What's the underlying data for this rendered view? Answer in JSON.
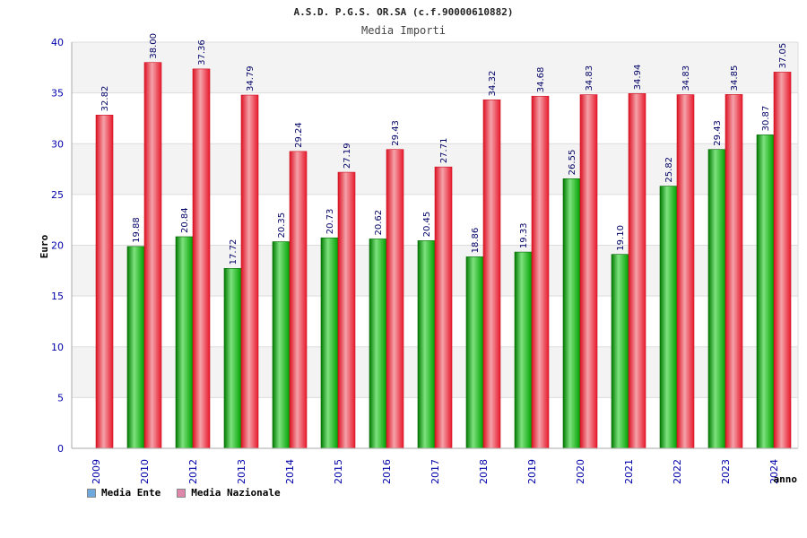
{
  "chart_data": {
    "type": "bar",
    "title": "A.S.D. P.G.S. OR.SA (c.f.90000610882)",
    "subtitle": "Media Importi",
    "xlabel": "anno",
    "ylabel": "Euro",
    "ylim": [
      0,
      40
    ],
    "yticks": [
      0,
      5,
      10,
      15,
      20,
      25,
      30,
      35,
      40
    ],
    "grid": true,
    "legend_position": "bottom-left",
    "categories": [
      "2009",
      "2010",
      "2012",
      "2013",
      "2014",
      "2015",
      "2016",
      "2017",
      "2018",
      "2019",
      "2020",
      "2021",
      "2022",
      "2023",
      "2024"
    ],
    "series": [
      {
        "name": "Media Ente",
        "color": "#00aa00",
        "legend_color": "#6fa8dc",
        "values": [
          null,
          19.88,
          20.84,
          17.72,
          20.35,
          20.73,
          20.62,
          20.45,
          18.86,
          19.33,
          26.55,
          19.1,
          25.82,
          29.43,
          30.87
        ],
        "labels": [
          "",
          "19.88",
          "20.84",
          "17.72",
          "20.35",
          "20.73",
          "20.62",
          "20.45",
          "18.86",
          "19.33",
          "26.55",
          "19.10",
          "25.82",
          "29.43",
          "30.87"
        ]
      },
      {
        "name": "Media Nazionale",
        "color": "#ee2233",
        "legend_color": "#dd88aa",
        "values": [
          32.82,
          38.0,
          37.36,
          34.79,
          29.24,
          27.19,
          29.43,
          27.71,
          34.32,
          34.68,
          34.83,
          34.94,
          34.83,
          34.85,
          37.05
        ],
        "labels": [
          "32.82",
          "38.00",
          "37.36",
          "34.79",
          "29.24",
          "27.19",
          "29.43",
          "27.71",
          "34.32",
          "34.68",
          "34.83",
          "34.94",
          "34.83",
          "34.85",
          "37.05"
        ]
      }
    ]
  }
}
